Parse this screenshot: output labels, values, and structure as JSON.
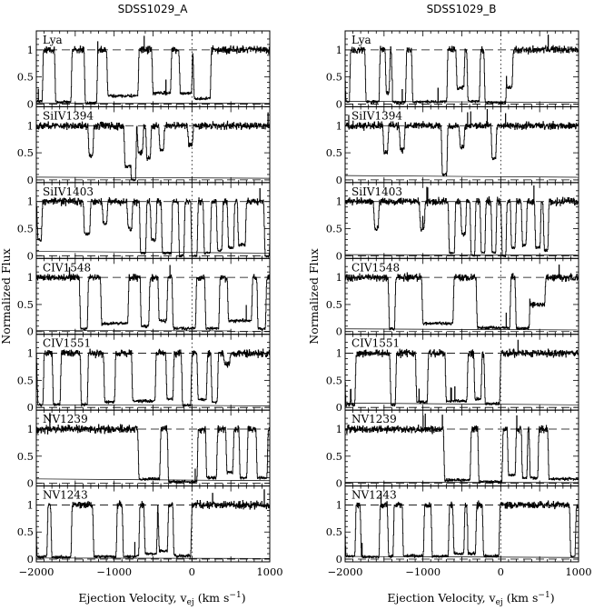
{
  "chart_data": [
    {
      "type": "line",
      "title": "SDSS1029_A",
      "xlabel": "Ejection Velocity, v_ej (km s^-1)",
      "ylabel": "Normalized Flux",
      "xlim": [
        -2000,
        1000
      ],
      "xticks": [
        -2000,
        -1000,
        0,
        1000
      ],
      "ylim": [
        -0.05,
        1.35
      ],
      "yticks": [
        0,
        0.5,
        1
      ],
      "reference_lines": {
        "dashed_y": [
          0,
          1
        ],
        "dotted_x": 0
      },
      "panels": [
        {
          "label": "Lya",
          "absorption": [
            [
              -2000,
              -1930,
              0.05
            ],
            [
              -1750,
              -1560,
              0.04
            ],
            [
              -1370,
              -1230,
              0.02
            ],
            [
              -1080,
              -700,
              0.15
            ],
            [
              -500,
              -280,
              0.2
            ],
            [
              -150,
              -10,
              0.2
            ],
            [
              30,
              230,
              0.1
            ]
          ]
        },
        {
          "label": "SiIV1394",
          "absorption": [
            [
              -1320,
              -1280,
              0.45
            ],
            [
              -860,
              -790,
              0.25
            ],
            [
              -780,
              -730,
              0.0
            ],
            [
              -690,
              -640,
              0.5
            ],
            [
              -580,
              -540,
              0.4
            ],
            [
              -410,
              -370,
              0.55
            ],
            [
              -40,
              0,
              0.65
            ]
          ]
        },
        {
          "label": "SiIV1403",
          "absorption": [
            [
              -1980,
              -1940,
              0.3
            ],
            [
              -1380,
              -1320,
              0.4
            ],
            [
              -1140,
              -1100,
              0.6
            ],
            [
              -820,
              -780,
              0.5
            ],
            [
              -660,
              -600,
              0.05
            ],
            [
              -520,
              -470,
              0.3
            ],
            [
              -380,
              -270,
              0.05
            ],
            [
              -160,
              -110,
              0.0
            ],
            [
              0,
              60,
              0.0
            ],
            [
              160,
              230,
              0.05
            ],
            [
              330,
              380,
              0.1
            ],
            [
              470,
              530,
              0.15
            ],
            [
              600,
              680,
              0.2
            ],
            [
              940,
              990,
              0.0
            ]
          ]
        },
        {
          "label": "CIV1548",
          "absorption": [
            [
              -1430,
              -1350,
              0.05
            ],
            [
              -1160,
              -830,
              0.15
            ],
            [
              -650,
              -560,
              0.1
            ],
            [
              -420,
              -330,
              0.2
            ],
            [
              -240,
              40,
              0.06
            ],
            [
              180,
              340,
              0.06
            ],
            [
              470,
              760,
              0.2
            ],
            [
              850,
              940,
              0.05
            ]
          ]
        },
        {
          "label": "CIV1551",
          "absorption": [
            [
              -1980,
              -1920,
              0.05
            ],
            [
              -1780,
              -1700,
              0.05
            ],
            [
              -1420,
              -1350,
              0.05
            ],
            [
              -1120,
              -1000,
              0.1
            ],
            [
              -760,
              -480,
              0.12
            ],
            [
              -320,
              -250,
              0.15
            ],
            [
              -120,
              -20,
              0.04
            ],
            [
              80,
              180,
              0.15
            ],
            [
              260,
              320,
              0.1
            ],
            [
              420,
              480,
              0.8
            ]
          ]
        },
        {
          "label": "NV1239",
          "absorption": [
            [
              -680,
              -420,
              0.08
            ],
            [
              -300,
              60,
              0.03
            ],
            [
              190,
              310,
              0.1
            ],
            [
              450,
              520,
              0.2
            ],
            [
              620,
              700,
              0.1
            ],
            [
              840,
              960,
              0.1
            ]
          ]
        },
        {
          "label": "NV1243",
          "absorption": [
            [
              -1990,
              -1870,
              0.05
            ],
            [
              -1800,
              -1560,
              0.04
            ],
            [
              -1260,
              -980,
              0.05
            ],
            [
              -880,
              -690,
              0.05
            ],
            [
              -600,
              -460,
              0.1
            ],
            [
              -420,
              -320,
              0.15
            ],
            [
              -230,
              -20,
              0.06
            ]
          ]
        }
      ]
    },
    {
      "type": "line",
      "title": "SDSS1029_B",
      "xlabel": "Ejection Velocity, v_ej (km s^-1)",
      "ylabel": "Normalized Flux",
      "xlim": [
        -2000,
        1000
      ],
      "xticks": [
        -2000,
        -1000,
        0,
        1000
      ],
      "ylim": [
        -0.05,
        1.35
      ],
      "yticks": [
        0,
        0.5,
        1
      ],
      "reference_lines": {
        "dashed_y": [
          0,
          1
        ],
        "dotted_x": 0
      },
      "panels": [
        {
          "label": "Lya",
          "absorption": [
            [
              -1990,
              -1950,
              0.05
            ],
            [
              -1730,
              -1570,
              0.04
            ],
            [
              -1470,
              -1440,
              0.2
            ],
            [
              -1390,
              -1230,
              0.03
            ],
            [
              -1130,
              -700,
              0.04
            ],
            [
              -560,
              -480,
              0.3
            ],
            [
              -420,
              -280,
              0.05
            ],
            [
              -200,
              60,
              0.03
            ],
            [
              80,
              140,
              0.3
            ]
          ]
        },
        {
          "label": "SiIV1394",
          "absorption": [
            [
              -1500,
              -1460,
              0.5
            ],
            [
              -1290,
              -1250,
              0.55
            ],
            [
              -750,
              -700,
              0.1
            ],
            [
              -520,
              -480,
              0.6
            ],
            [
              -110,
              -70,
              0.4
            ]
          ]
        },
        {
          "label": "SiIV1403",
          "absorption": [
            [
              -1620,
              -1580,
              0.5
            ],
            [
              -1030,
              -990,
              0.5
            ],
            [
              -660,
              -600,
              0.05
            ],
            [
              -500,
              -460,
              0.4
            ],
            [
              -380,
              -340,
              0.0
            ],
            [
              -250,
              -210,
              0.05
            ],
            [
              -110,
              -70,
              0.05
            ],
            [
              20,
              60,
              0.0
            ],
            [
              140,
              180,
              0.15
            ],
            [
              280,
              320,
              0.2
            ],
            [
              450,
              500,
              0.15
            ],
            [
              560,
              600,
              0.1
            ]
          ]
        },
        {
          "label": "CIV1548",
          "absorption": [
            [
              -1430,
              -1370,
              0.05
            ],
            [
              -1000,
              -620,
              0.15
            ],
            [
              -300,
              110,
              0.07
            ],
            [
              200,
              360,
              0.06
            ],
            [
              380,
              560,
              0.5
            ]
          ]
        },
        {
          "label": "CIV1551",
          "absorption": [
            [
              -1990,
              -1940,
              0.05
            ],
            [
              -1920,
              -1880,
              0.05
            ],
            [
              -1410,
              -1360,
              0.05
            ],
            [
              -1080,
              -950,
              0.1
            ],
            [
              -700,
              -440,
              0.12
            ],
            [
              -330,
              -260,
              0.15
            ],
            [
              -200,
              -20,
              0.07
            ]
          ]
        },
        {
          "label": "NV1239",
          "absorption": [
            [
              -720,
              -400,
              0.06
            ],
            [
              -280,
              10,
              0.03
            ],
            [
              100,
              180,
              0.15
            ],
            [
              280,
              330,
              0.1
            ],
            [
              380,
              470,
              0.1
            ],
            [
              620,
              1000,
              0.08
            ]
          ]
        },
        {
          "label": "NV1243",
          "absorption": [
            [
              -1990,
              -1880,
              0.05
            ],
            [
              -1790,
              -1570,
              0.04
            ],
            [
              -1440,
              -1390,
              0.05
            ],
            [
              -1250,
              -1000,
              0.06
            ],
            [
              -880,
              -680,
              0.05
            ],
            [
              -600,
              -480,
              0.1
            ],
            [
              -420,
              -330,
              0.1
            ],
            [
              -220,
              -30,
              0.06
            ],
            [
              900,
              950,
              0.05
            ]
          ]
        }
      ]
    }
  ]
}
